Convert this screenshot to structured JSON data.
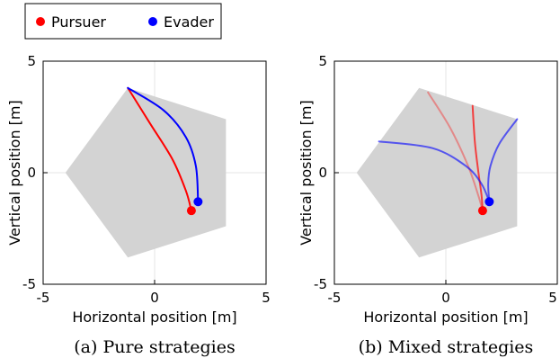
{
  "legend": {
    "items": [
      {
        "label": "Pursuer",
        "color": "#ff0000"
      },
      {
        "label": "Evader",
        "color": "#0000ff"
      }
    ]
  },
  "chart_data": [
    {
      "type": "line",
      "caption": "(a)  Pure strategies",
      "xlabel": "Horizontal position [m]",
      "ylabel": "Vertical position [m]",
      "xlim": [
        -5,
        5
      ],
      "ylim": [
        -5,
        5
      ],
      "xticks": [
        "-5",
        "0",
        "5"
      ],
      "yticks": [
        "-5",
        "0",
        "5"
      ],
      "grid": true,
      "region": {
        "color": "#d3d3d3",
        "polygon": [
          [
            -4.0,
            0.0
          ],
          [
            -1.2,
            3.8
          ],
          [
            3.2,
            2.4
          ],
          [
            3.2,
            -2.4
          ],
          [
            -1.2,
            -3.8
          ]
        ]
      },
      "series": [
        {
          "role": "pursuer",
          "color": "#ff0000",
          "opacity": 1,
          "points": [
            [
              -1.2,
              3.8
            ],
            [
              -0.2,
              2.2
            ],
            [
              0.8,
              0.6
            ],
            [
              1.4,
              -0.8
            ],
            [
              1.65,
              -1.7
            ]
          ]
        },
        {
          "role": "evader",
          "color": "#0000ff",
          "opacity": 1,
          "points": [
            [
              -1.2,
              3.8
            ],
            [
              0.4,
              2.8
            ],
            [
              1.4,
              1.6
            ],
            [
              1.85,
              0.3
            ],
            [
              1.95,
              -1.3
            ]
          ]
        }
      ],
      "markers": [
        {
          "role": "pursuer",
          "color": "#ff0000",
          "x": 1.65,
          "y": -1.7
        },
        {
          "role": "evader",
          "color": "#0000ff",
          "x": 1.95,
          "y": -1.3
        }
      ]
    },
    {
      "type": "line",
      "caption": "(b)  Mixed strategies",
      "xlabel": "Horizontal position [m]",
      "ylabel": "Vertical position [m]",
      "xlim": [
        -5,
        5
      ],
      "ylim": [
        -5,
        5
      ],
      "xticks": [
        "-5",
        "0",
        "5"
      ],
      "yticks": [
        "-5",
        "0",
        "5"
      ],
      "grid": true,
      "region": {
        "color": "#d3d3d3",
        "polygon": [
          [
            -4.0,
            0.0
          ],
          [
            -1.2,
            3.8
          ],
          [
            3.2,
            2.4
          ],
          [
            3.2,
            -2.4
          ],
          [
            -1.2,
            -3.8
          ]
        ]
      },
      "series": [
        {
          "role": "pursuer",
          "color": "#ff0000",
          "opacity": 0.35,
          "points": [
            [
              -0.8,
              3.6
            ],
            [
              0.2,
              2.0
            ],
            [
              1.0,
              0.3
            ],
            [
              1.45,
              -1.0
            ],
            [
              1.65,
              -1.7
            ]
          ]
        },
        {
          "role": "pursuer",
          "color": "#ff0000",
          "opacity": 0.7,
          "points": [
            [
              1.2,
              3.0
            ],
            [
              1.3,
              1.4
            ],
            [
              1.45,
              0.1
            ],
            [
              1.6,
              -1.0
            ],
            [
              1.65,
              -1.7
            ]
          ]
        },
        {
          "role": "evader",
          "color": "#0000ff",
          "opacity": 0.6,
          "points": [
            [
              -3.0,
              1.4
            ],
            [
              -0.6,
              1.1
            ],
            [
              0.9,
              0.3
            ],
            [
              1.6,
              -0.5
            ],
            [
              1.95,
              -1.3
            ]
          ]
        },
        {
          "role": "evader",
          "color": "#0000ff",
          "opacity": 0.6,
          "points": [
            [
              3.2,
              2.4
            ],
            [
              2.4,
              1.3
            ],
            [
              2.0,
              0.3
            ],
            [
              1.9,
              -0.5
            ],
            [
              1.95,
              -1.3
            ]
          ]
        }
      ],
      "markers": [
        {
          "role": "pursuer",
          "color": "#ff0000",
          "x": 1.65,
          "y": -1.7
        },
        {
          "role": "evader",
          "color": "#0000ff",
          "x": 1.95,
          "y": -1.3
        }
      ]
    }
  ]
}
